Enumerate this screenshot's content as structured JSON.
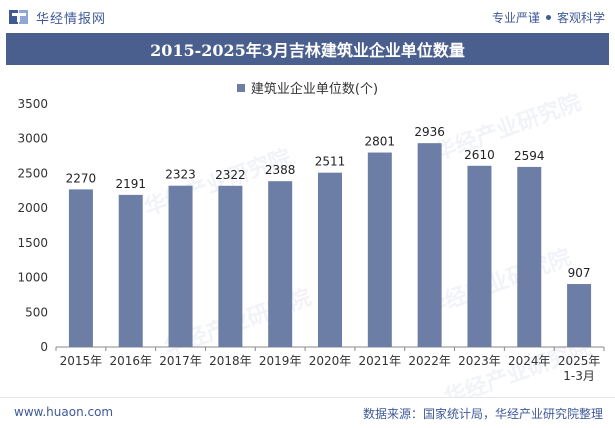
{
  "header": {
    "brand": "华经情报网",
    "tagline_left": "专业严谨",
    "tagline_right": "客观科学"
  },
  "title": "2015-2025年3月吉林建筑业企业单位数量",
  "legend": {
    "label": "建筑业企业单位数(个)"
  },
  "watermark": "华经产业研究院",
  "footer": {
    "website": "www.huaon.com",
    "source": "数据来源：国家统计局，华经产业研究院整理"
  },
  "colors": {
    "bar": "#6d7ea6",
    "title_bg": "#4a5f8e",
    "brand": "#3f5a97"
  },
  "chart_data": {
    "type": "bar",
    "title": "2015-2025年3月吉林建筑业企业单位数量",
    "categories": [
      "2015年",
      "2016年",
      "2017年",
      "2018年",
      "2019年",
      "2020年",
      "2021年",
      "2022年",
      "2023年",
      "2024年",
      "2025年\n1-3月"
    ],
    "series": [
      {
        "name": "建筑业企业单位数(个)",
        "values": [
          2270,
          2191,
          2323,
          2322,
          2388,
          2511,
          2801,
          2936,
          2610,
          2594,
          907
        ]
      }
    ],
    "ylim": [
      0,
      3500
    ],
    "yticks": [
      0,
      500,
      1000,
      1500,
      2000,
      2500,
      3000,
      3500
    ],
    "xlabel": "",
    "ylabel": "",
    "legend_position": "top-center",
    "grid": false
  }
}
